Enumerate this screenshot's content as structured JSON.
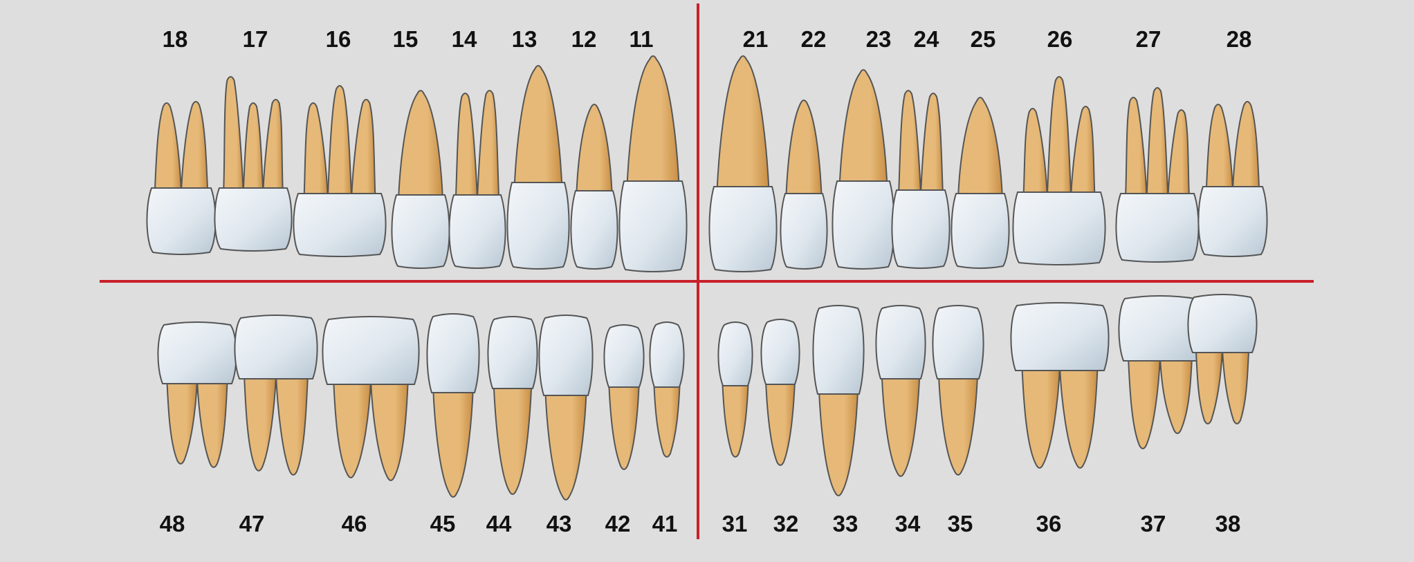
{
  "colors": {
    "background": "#dedede",
    "divider": "#c8202a",
    "root": "#e6b978",
    "root_shade": "#c98f45",
    "crown": "#dfe7ee",
    "crown_shade": "#b9c8d4",
    "outline": "#555555"
  },
  "upper_right": [
    "18",
    "17",
    "16",
    "15",
    "14",
    "13",
    "12",
    "11"
  ],
  "upper_left": [
    "21",
    "22",
    "23",
    "24",
    "25",
    "26",
    "27",
    "28"
  ],
  "lower_right": [
    "48",
    "47",
    "46",
    "45",
    "44",
    "43",
    "42",
    "41"
  ],
  "lower_left": [
    "31",
    "32",
    "33",
    "34",
    "35",
    "36",
    "37",
    "38"
  ]
}
